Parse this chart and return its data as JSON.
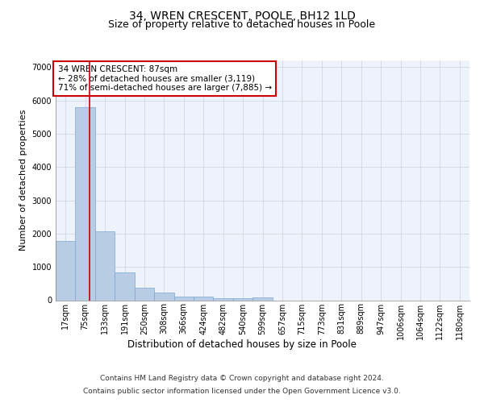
{
  "title": "34, WREN CRESCENT, POOLE, BH12 1LD",
  "subtitle": "Size of property relative to detached houses in Poole",
  "xlabel": "Distribution of detached houses by size in Poole",
  "ylabel": "Number of detached properties",
  "categories": [
    "17sqm",
    "75sqm",
    "133sqm",
    "191sqm",
    "250sqm",
    "308sqm",
    "366sqm",
    "424sqm",
    "482sqm",
    "540sqm",
    "599sqm",
    "657sqm",
    "715sqm",
    "773sqm",
    "831sqm",
    "889sqm",
    "947sqm",
    "1006sqm",
    "1064sqm",
    "1122sqm",
    "1180sqm"
  ],
  "values": [
    1780,
    5800,
    2060,
    830,
    380,
    230,
    110,
    110,
    70,
    70,
    80,
    0,
    0,
    0,
    0,
    0,
    0,
    0,
    0,
    0,
    0
  ],
  "bar_color": "#b8cce4",
  "bar_edge_color": "#7ba7d4",
  "property_line_color": "#cc0000",
  "annotation_text": "34 WREN CRESCENT: 87sqm\n← 28% of detached houses are smaller (3,119)\n71% of semi-detached houses are larger (7,885) →",
  "annotation_box_color": "white",
  "annotation_box_edge_color": "#cc0000",
  "ylim": [
    0,
    7200
  ],
  "yticks": [
    0,
    1000,
    2000,
    3000,
    4000,
    5000,
    6000,
    7000
  ],
  "grid_color": "#c8d0e0",
  "background_color": "#eef2fb",
  "footer_line1": "Contains HM Land Registry data © Crown copyright and database right 2024.",
  "footer_line2": "Contains public sector information licensed under the Open Government Licence v3.0.",
  "title_fontsize": 10,
  "subtitle_fontsize": 9,
  "axis_label_fontsize": 8.5,
  "tick_fontsize": 7,
  "annotation_fontsize": 7.5,
  "footer_fontsize": 6.5,
  "ylabel_fontsize": 8
}
